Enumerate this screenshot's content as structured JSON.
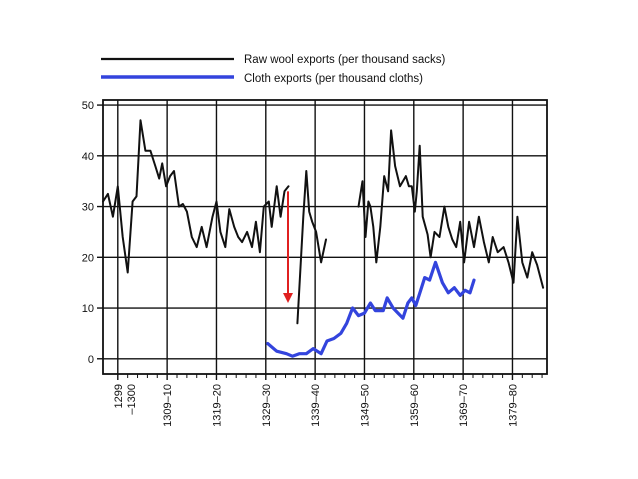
{
  "chart_data": {
    "type": "line",
    "title": "",
    "xlabel": "",
    "ylabel": "",
    "ylim": [
      -3,
      51
    ],
    "yticks": [
      0,
      10,
      20,
      30,
      40,
      50
    ],
    "xlim": [
      1296,
      1386
    ],
    "legend": {
      "placement": "top-center",
      "entries": [
        {
          "label": "Raw wool exports (per thousand sacks)",
          "color": "#111111"
        },
        {
          "label": "Cloth exports (per thousand cloths)",
          "color": "#3344dd"
        }
      ]
    },
    "x_tick_labels": [
      {
        "x": 1299,
        "label": "1299\n–1300"
      },
      {
        "x": 1309,
        "label": "1309–10"
      },
      {
        "x": 1319,
        "label": "1319–20"
      },
      {
        "x": 1329,
        "label": "1329–30"
      },
      {
        "x": 1339,
        "label": "1339–40"
      },
      {
        "x": 1349,
        "label": "1349–50"
      },
      {
        "x": 1359,
        "label": "1359–60"
      },
      {
        "x": 1369,
        "label": "1369–70"
      },
      {
        "x": 1379,
        "label": "1379–80"
      }
    ],
    "annotation": {
      "type": "arrow",
      "color": "#e02020",
      "x": 1333.5,
      "from_y": 33,
      "to_y": 11
    },
    "series": [
      {
        "name": "Raw wool exports (per thousand sacks)",
        "color": "#111111",
        "segments": [
          {
            "x": [
              1296,
              1297,
              1298,
              1299,
              1300,
              1301,
              1302,
              1302.8,
              1303.6,
              1304.6,
              1305.6,
              1306.6,
              1307.4,
              1308,
              1308.8,
              1309.6,
              1310.4,
              1311.4,
              1312.2,
              1313,
              1314,
              1315,
              1316,
              1317,
              1318.2,
              1319,
              1319.8,
              1320.8,
              1321.6,
              1322.6,
              1323.4,
              1324.2,
              1325.2,
              1326.2,
              1327,
              1327.8,
              1328.6,
              1329.6,
              1330.2,
              1331.2,
              1332,
              1332.8,
              1333.6
            ],
            "y": [
              31,
              32.5,
              28,
              34,
              24,
              17,
              31,
              32,
              47,
              41,
              41,
              38,
              35.5,
              38.5,
              34,
              36,
              37,
              30,
              30.5,
              29,
              24,
              22,
              26,
              22,
              28,
              31,
              25,
              22,
              29.5,
              26,
              24,
              23,
              25,
              22,
              27,
              21,
              30,
              31,
              26,
              34,
              28,
              33,
              34
            ]
          },
          {
            "x": [
              1335.4,
              1336.6,
              1337.2,
              1337.8,
              1338.4,
              1339.2,
              1340.2,
              1341.2
            ],
            "y": [
              7,
              28,
              37,
              29,
              27,
              25,
              19,
              23.5
            ]
          },
          {
            "x": [
              1347.8,
              1348.6,
              1349.2,
              1349.8,
              1350.2,
              1350.8,
              1351.4,
              1352.2,
              1353,
              1353.8,
              1354.4,
              1355.2,
              1356.2,
              1357.4,
              1358,
              1358.6,
              1359.2,
              1359.6,
              1360.2,
              1360.8,
              1361.8,
              1362.4,
              1363.2,
              1364.2,
              1365.2,
              1366,
              1366.8,
              1367.6,
              1368.4,
              1369.2,
              1370.2,
              1371.2,
              1372.2,
              1373.2,
              1374.2,
              1375,
              1376,
              1377.2,
              1378.2,
              1379.2,
              1380,
              1381,
              1382,
              1383,
              1384,
              1385.2
            ],
            "y": [
              30,
              35,
              24,
              31,
              30,
              26,
              19,
              26,
              36,
              33,
              45,
              38,
              34,
              36,
              34,
              34,
              29,
              33,
              42,
              28,
              24.5,
              20,
              25,
              24,
              30,
              26,
              23.5,
              22,
              27,
              19,
              27,
              22,
              28,
              23,
              19,
              24,
              21,
              22,
              19,
              15,
              28,
              19,
              16,
              21,
              18.5,
              14
            ]
          }
        ]
      },
      {
        "name": "Cloth exports (per thousand cloths)",
        "color": "#3344dd",
        "segments": [
          {
            "x": [
              1329.4,
              1331.2,
              1333.2,
              1334.4,
              1335.8,
              1337.2,
              1338.6,
              1340.2,
              1341.4,
              1342.8,
              1344.2,
              1345.4,
              1346.6,
              1347.8,
              1349,
              1350.2,
              1351.2,
              1352.8,
              1353.6,
              1354.8,
              1355.8,
              1356.8,
              1357.8,
              1358.6,
              1359.4,
              1360.4,
              1361.2,
              1362.2,
              1363.4,
              1364.8,
              1366,
              1367.2,
              1368.4,
              1369.4,
              1370.4,
              1371.2
            ],
            "y": [
              3,
              1.5,
              1,
              0.5,
              1,
              1,
              2,
              1,
              3.5,
              4,
              5,
              7,
              10,
              8.5,
              9,
              11,
              9.5,
              9.5,
              12,
              10,
              9,
              8,
              11,
              12,
              10.5,
              13.5,
              16,
              15.5,
              19,
              15,
              13,
              14,
              12.5,
              13.5,
              13,
              15.5
            ]
          }
        ]
      }
    ]
  }
}
